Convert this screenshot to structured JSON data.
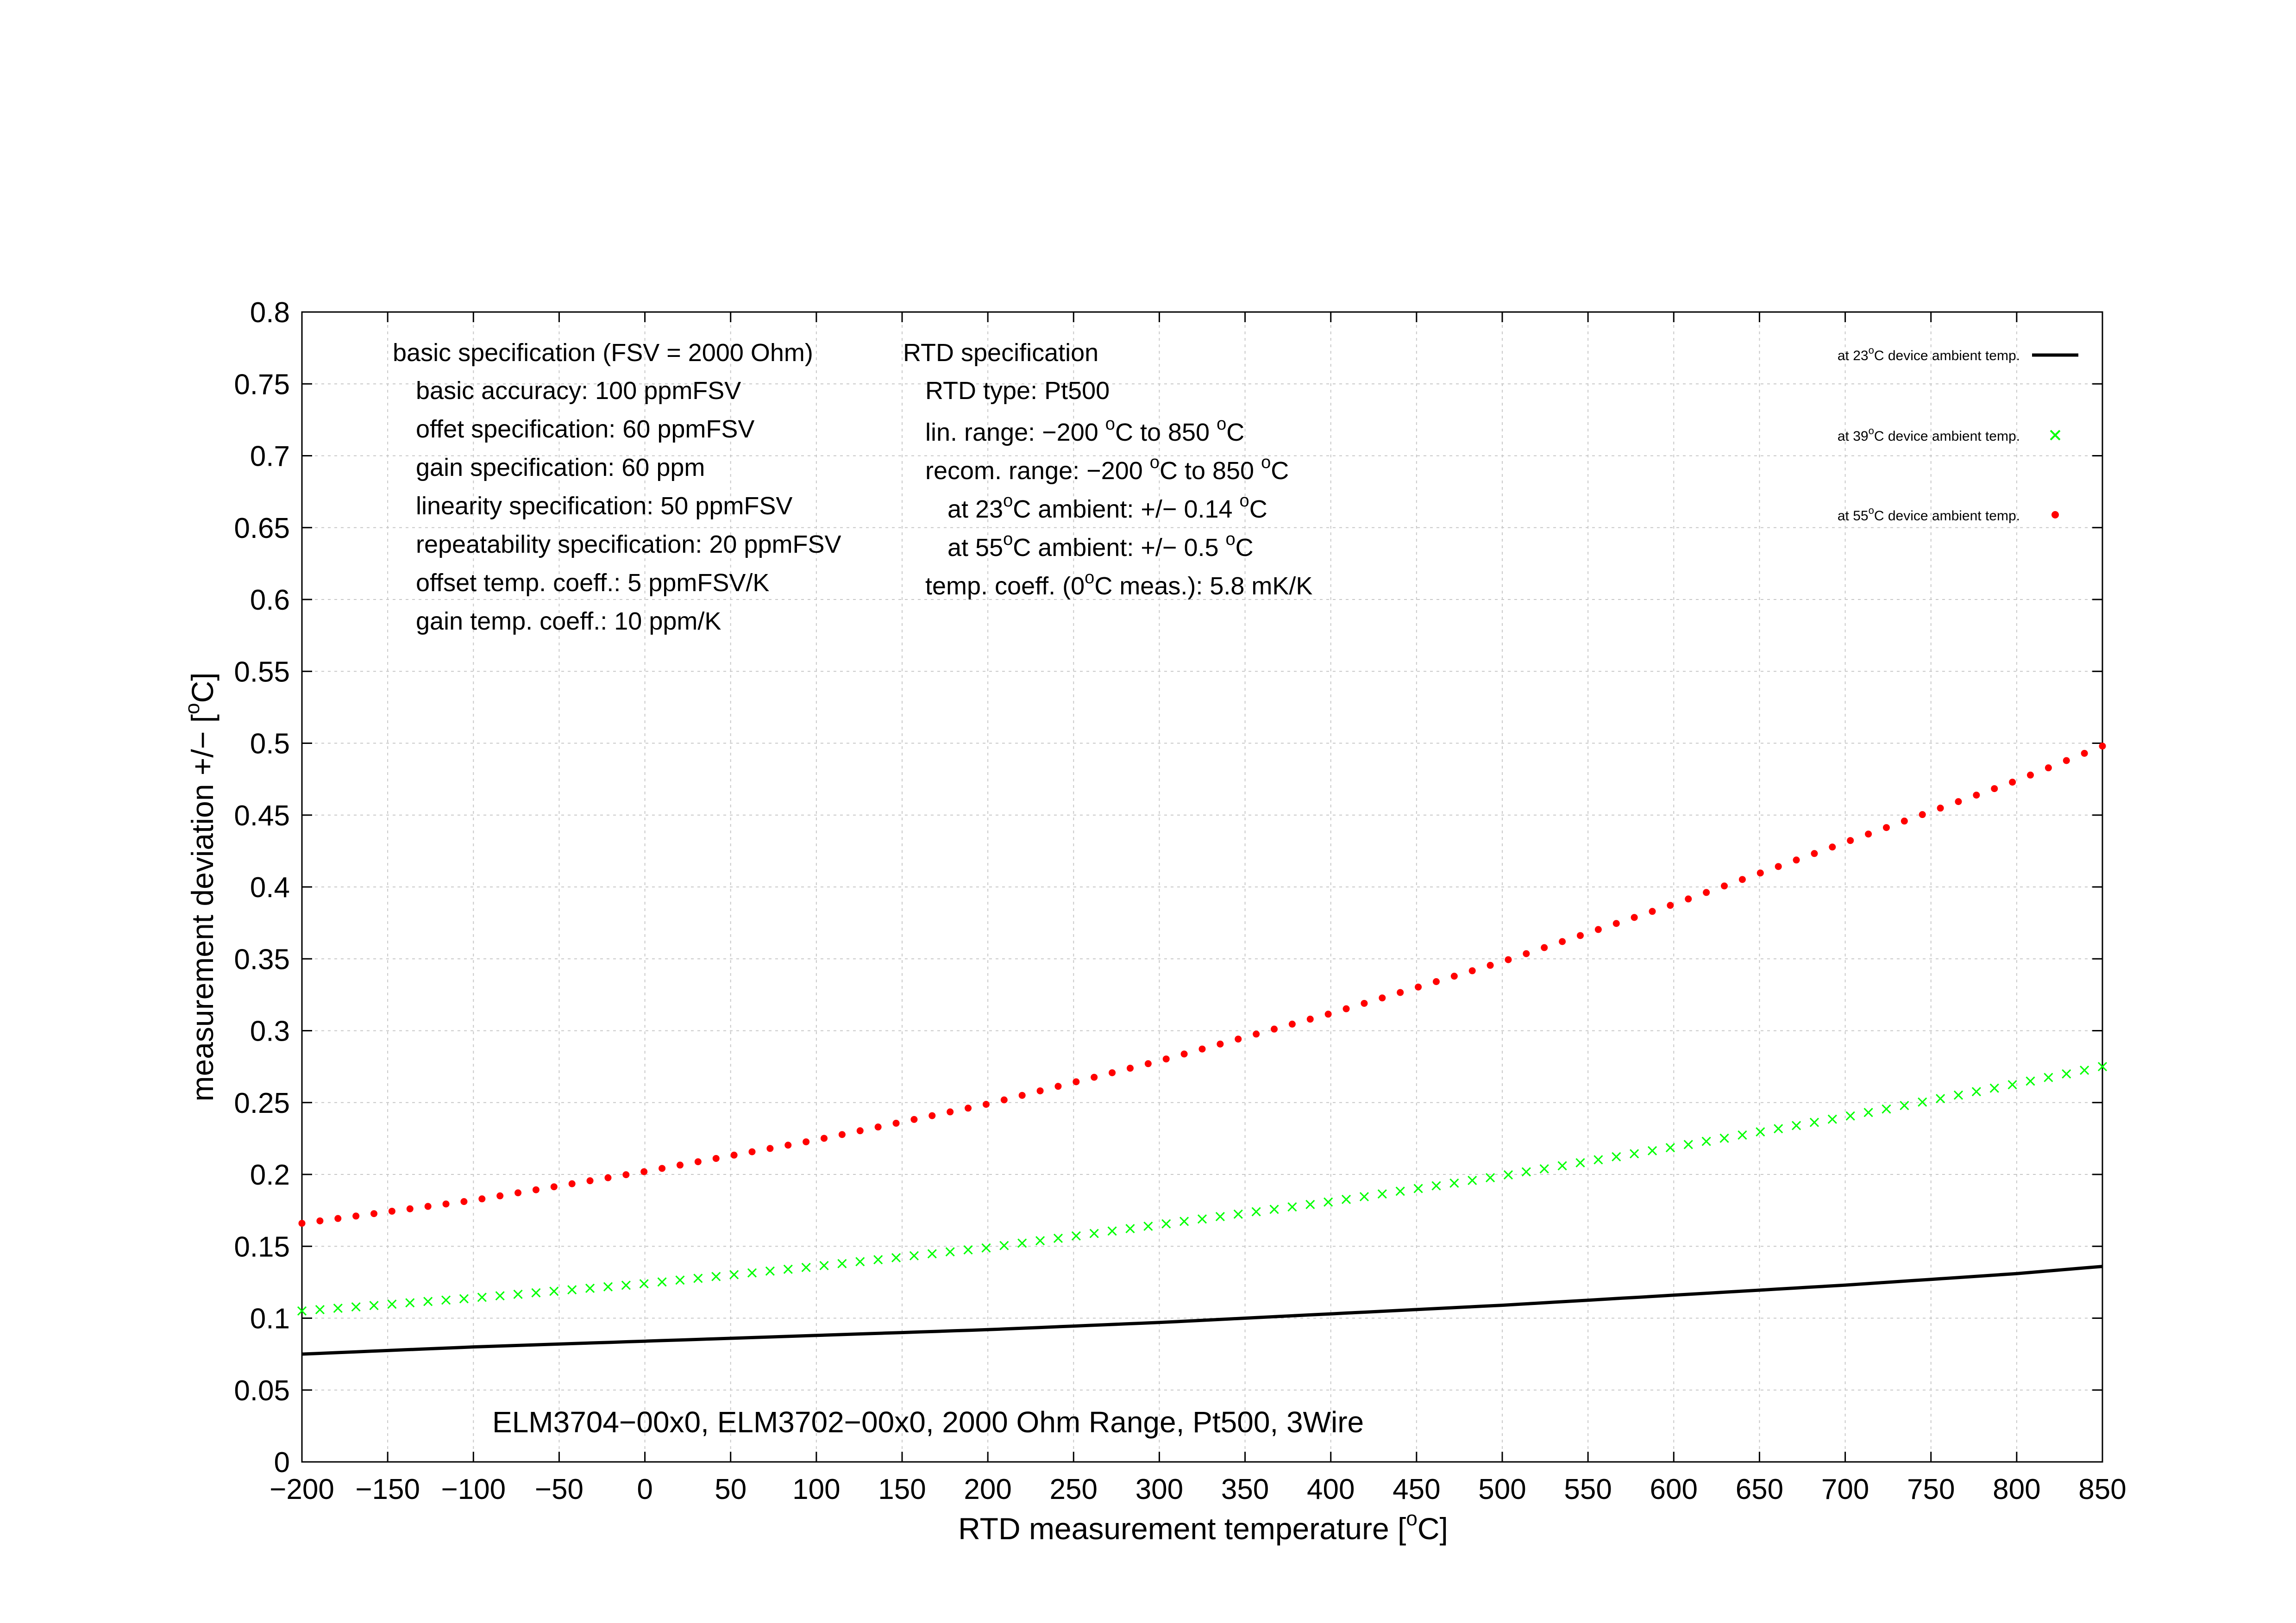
{
  "chart_data": {
    "type": "line",
    "subtitle": "ELM3704−00x0, ELM3702−00x0, 2000 Ohm Range, Pt500, 3Wire",
    "xlabel": "RTD measurement temperature [°C]",
    "ylabel": "measurement deviation +/− [°C]",
    "xlim": [
      -200,
      850
    ],
    "ylim": [
      0,
      0.8
    ],
    "grid": true,
    "legend_position": "top-right",
    "x_ticks": [
      "−200",
      "−150",
      "−100",
      "−50",
      "0",
      "50",
      "100",
      "150",
      "200",
      "250",
      "300",
      "350",
      "400",
      "450",
      "500",
      "550",
      "600",
      "650",
      "700",
      "750",
      "800",
      "850"
    ],
    "y_ticks": [
      "0",
      "0.05",
      "0.1",
      "0.15",
      "0.2",
      "0.25",
      "0.3",
      "0.35",
      "0.4",
      "0.45",
      "0.5",
      "0.55",
      "0.6",
      "0.65",
      "0.7",
      "0.75",
      "0.8"
    ],
    "series": [
      {
        "name": "at 23°C device ambient temp.",
        "legend_text": "at 23",
        "legend_unit": "C device ambient temp.",
        "style": "line",
        "color": "#000000",
        "x": [
          -200,
          -100,
          0,
          100,
          200,
          300,
          400,
          500,
          600,
          700,
          800,
          850
        ],
        "y": [
          0.075,
          0.08,
          0.084,
          0.088,
          0.092,
          0.097,
          0.103,
          0.109,
          0.116,
          0.123,
          0.131,
          0.136
        ]
      },
      {
        "name": "at 39°C device ambient temp.",
        "legend_text": "at 39",
        "legend_unit": "C device ambient temp.",
        "style": "cross",
        "color": "#00ff00",
        "x": [
          -200,
          -100,
          0,
          100,
          200,
          300,
          400,
          500,
          600,
          700,
          800,
          850
        ],
        "y": [
          0.105,
          0.114,
          0.124,
          0.136,
          0.149,
          0.165,
          0.181,
          0.199,
          0.219,
          0.24,
          0.263,
          0.275
        ]
      },
      {
        "name": "at 55°C device ambient temp.",
        "legend_text": "at 55",
        "legend_unit": "C device ambient temp.",
        "style": "dot",
        "color": "#ff0000",
        "x": [
          -200,
          -100,
          0,
          100,
          200,
          300,
          400,
          500,
          600,
          700,
          800,
          850
        ],
        "y": [
          0.166,
          0.182,
          0.202,
          0.224,
          0.249,
          0.279,
          0.312,
          0.348,
          0.388,
          0.431,
          0.474,
          0.498
        ]
      }
    ]
  },
  "basic_spec": {
    "title": "basic specification (FSV = 2000 Ohm)",
    "lines": [
      "basic accuracy: 100 ppmFSV",
      "offet specification: 60 ppmFSV",
      "gain specification: 60 ppm",
      "linearity specification: 50 ppmFSV",
      "repeatability specification: 20 ppmFSV",
      "offset temp. coeff.: 5 ppmFSV/K",
      "gain temp. coeff.: 10 ppm/K"
    ]
  },
  "rtd_spec": {
    "title": "RTD specification",
    "rtd_type": "RTD type: Pt500",
    "lin_range_a": "lin. range: −200 ",
    "lin_range_b": "C to 850 ",
    "lin_range_c": "C",
    "recom_range_a": "recom. range: −200 ",
    "recom_range_b": "C to 850 ",
    "recom_range_c": "C",
    "amb23_a": "at 23",
    "amb23_b": "C ambient: +/− 0.14 ",
    "amb23_c": "C",
    "amb55_a": "at 55",
    "amb55_b": "C ambient: +/− 0.5 ",
    "amb55_c": "C",
    "tempcoeff_a": "temp. coeff. (0",
    "tempcoeff_b": "C meas.): 5.8 mK/K"
  },
  "degree_sup": "o"
}
